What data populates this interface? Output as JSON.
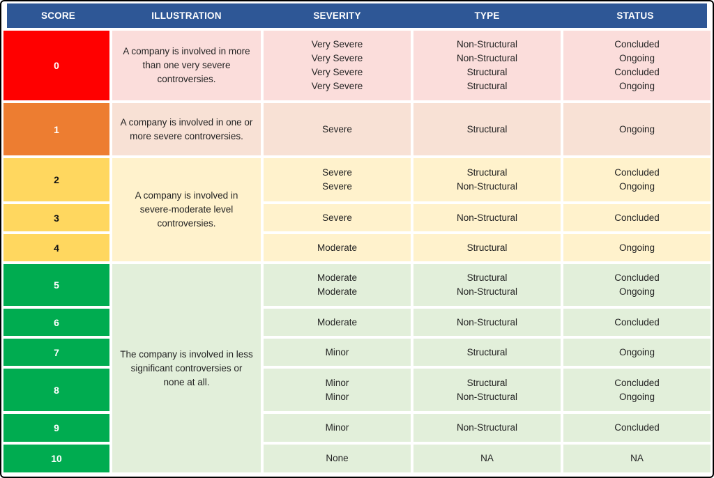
{
  "chart_data": {
    "type": "table",
    "columns": [
      "SCORE",
      "ILLUSTRATION",
      "SEVERITY",
      "TYPE",
      "STATUS"
    ],
    "illustrations": [
      "A company is involved in more than one very severe controversies.",
      "A company is involved in one or more severe controversies.",
      "A company is involved in severe-moderate level controversies.",
      "The company is involved in less significant controversies or none at all."
    ],
    "rows": [
      {
        "score": "0",
        "severity": [
          "Very Severe",
          "Very Severe",
          "Very Severe",
          "Very Severe"
        ],
        "type": [
          "Non-Structural",
          "Non-Structural",
          "Structural",
          "Structural"
        ],
        "status": [
          "Concluded",
          "Ongoing",
          "Concluded",
          "Ongoing"
        ]
      },
      {
        "score": "1",
        "severity": [
          "Severe"
        ],
        "type": [
          "Structural"
        ],
        "status": [
          "Ongoing"
        ]
      },
      {
        "score": "2",
        "severity": [
          "Severe",
          "Severe"
        ],
        "type": [
          "Structural",
          "Non-Structural"
        ],
        "status": [
          "Concluded",
          "Ongoing"
        ]
      },
      {
        "score": "3",
        "severity": [
          "Severe"
        ],
        "type": [
          "Non-Structural"
        ],
        "status": [
          "Concluded"
        ]
      },
      {
        "score": "4",
        "severity": [
          "Moderate"
        ],
        "type": [
          "Structural"
        ],
        "status": [
          "Ongoing"
        ]
      },
      {
        "score": "5",
        "severity": [
          "Moderate",
          "Moderate"
        ],
        "type": [
          "Structural",
          "Non-Structural"
        ],
        "status": [
          "Concluded",
          "Ongoing"
        ]
      },
      {
        "score": "6",
        "severity": [
          "Moderate"
        ],
        "type": [
          "Non-Structural"
        ],
        "status": [
          "Concluded"
        ]
      },
      {
        "score": "7",
        "severity": [
          "Minor"
        ],
        "type": [
          "Structural"
        ],
        "status": [
          "Ongoing"
        ]
      },
      {
        "score": "8",
        "severity": [
          "Minor",
          "Minor"
        ],
        "type": [
          "Structural",
          "Non-Structural"
        ],
        "status": [
          "Concluded",
          "Ongoing"
        ]
      },
      {
        "score": "9",
        "severity": [
          "Minor"
        ],
        "type": [
          "Non-Structural"
        ],
        "status": [
          "Concluded"
        ]
      },
      {
        "score": "10",
        "severity": [
          "None"
        ],
        "type": [
          "NA"
        ],
        "status": [
          "NA"
        ]
      }
    ],
    "colors": {
      "header_bg": "#2E5796",
      "header_text": "#FFFFFF",
      "score_red": "#FF0000",
      "score_orange": "#ED7D31",
      "score_yellow": "#FFD75F",
      "score_green": "#00AC50",
      "row_red_bg": "#FBDDDB",
      "row_orange_bg": "#F8E1D5",
      "row_yellow_bg": "#FFF2CC",
      "row_green_bg": "#E2EFDA"
    }
  }
}
